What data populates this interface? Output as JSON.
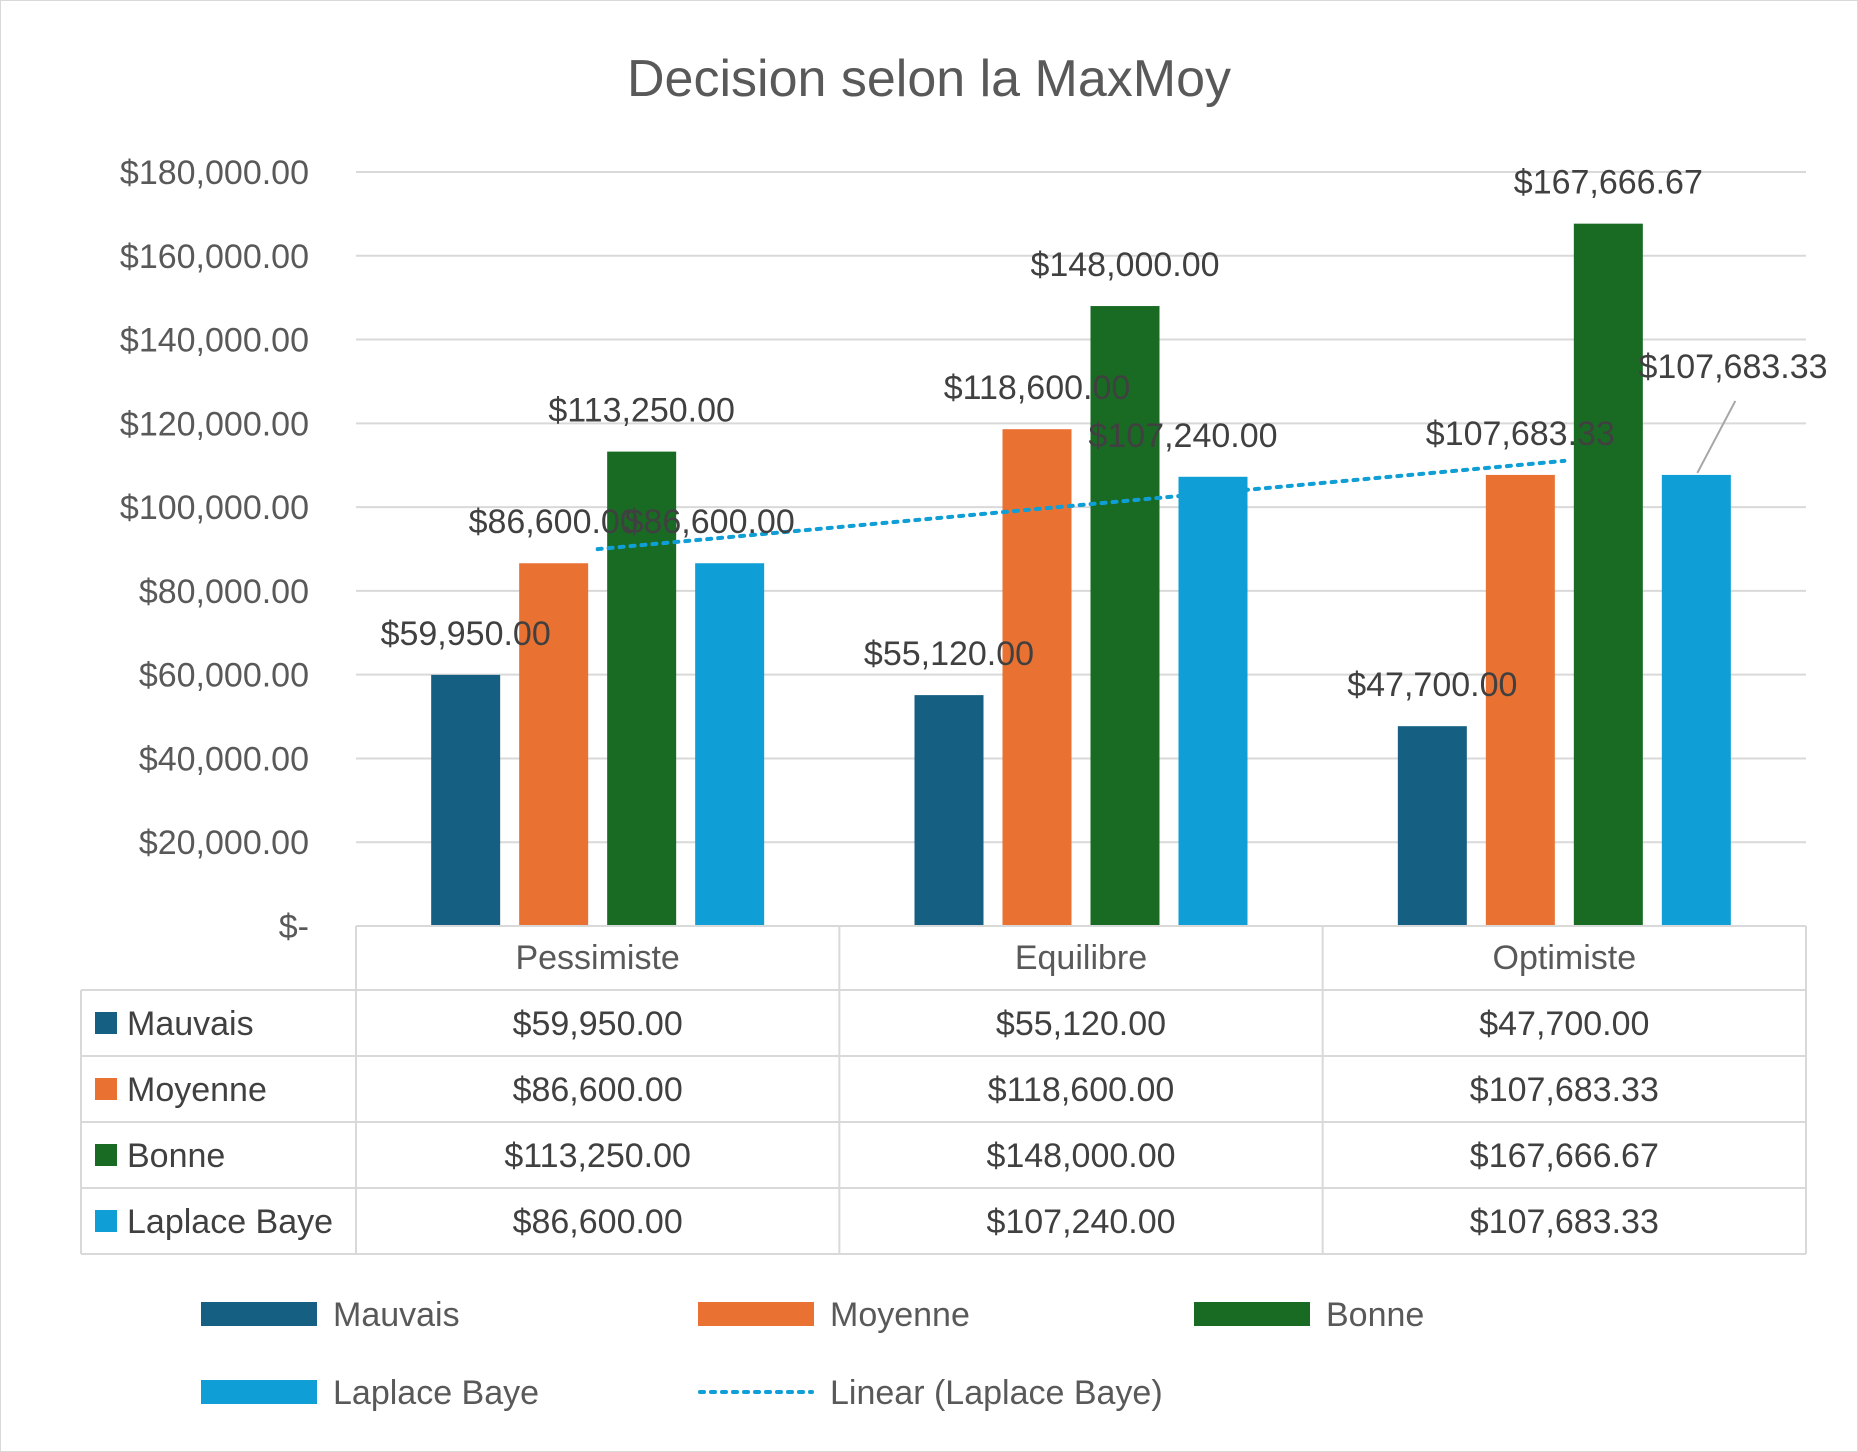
{
  "chart_data": {
    "type": "bar",
    "title": "Decision selon la MaxMoy",
    "xlabel": "",
    "ylabel": "",
    "ylim": [
      0,
      180000
    ],
    "ytick_step": 20000,
    "y_ticks": [
      "$-",
      "$20,000.00",
      "$40,000.00",
      "$60,000.00",
      "$80,000.00",
      "$100,000.00",
      "$120,000.00",
      "$140,000.00",
      "$160,000.00",
      "$180,000.00"
    ],
    "grid": true,
    "categories": [
      "Pessimiste",
      "Equilibre",
      "Optimiste"
    ],
    "series": [
      {
        "name": "Mauvais",
        "color": "#156082",
        "values": [
          59950,
          55120,
          47700
        ],
        "labels": [
          "$59,950.00",
          "$55,120.00",
          "$47,700.00"
        ]
      },
      {
        "name": "Moyenne",
        "color": "#E97132",
        "values": [
          86600,
          118600,
          107683.33
        ],
        "labels": [
          "$86,600.00",
          "$118,600.00",
          "$107,683.33"
        ]
      },
      {
        "name": "Bonne",
        "color": "#196B24",
        "values": [
          113250,
          148000,
          167666.67
        ],
        "labels": [
          "$113,250.00",
          "$148,000.00",
          "$167,666.67"
        ]
      },
      {
        "name": "Laplace Baye",
        "color": "#0F9ED5",
        "values": [
          86600,
          107240,
          107683.33
        ],
        "labels": [
          "$86,600.00",
          "$107,240.00",
          "$107,683.33"
        ]
      }
    ],
    "trendline": {
      "name": "Linear (Laplace Baye)",
      "series": "Laplace Baye",
      "type": "linear",
      "style": "dotted",
      "color": "#0F9ED5"
    },
    "data_table": true,
    "legend": "bottom"
  }
}
